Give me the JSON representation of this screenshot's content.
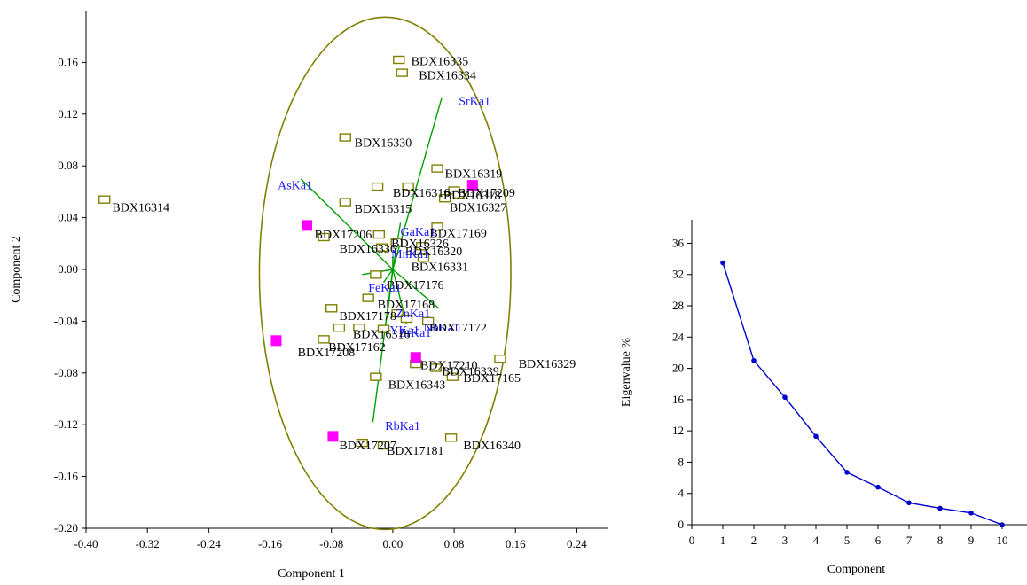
{
  "chart_data": [
    {
      "type": "scatter",
      "title": "",
      "xlabel": "Component 1",
      "ylabel": "Component 2",
      "xlim": [
        -0.4,
        0.28
      ],
      "ylim": [
        -0.2,
        0.2
      ],
      "xticks": [
        "-0.40",
        "-0.32",
        "-0.24",
        "-0.16",
        "-0.08",
        "0.00",
        "0.08",
        "0.16",
        "0.24"
      ],
      "xtick_values": [
        -0.4,
        -0.32,
        -0.24,
        -0.16,
        -0.08,
        0.0,
        0.08,
        0.16,
        0.24
      ],
      "yticks": [
        "0.16",
        "0.12",
        "0.08",
        "0.04",
        "0.00",
        "-0.04",
        "-0.08",
        "-0.12",
        "-0.16",
        "-0.20"
      ],
      "ytick_values": [
        0.16,
        0.12,
        0.08,
        0.04,
        0.0,
        -0.04,
        -0.08,
        -0.12,
        -0.16,
        -0.2
      ],
      "grid": false,
      "colors": {
        "ellipse": "#808000",
        "sample_marker": "#808000",
        "highlight_marker": "#ff00ff",
        "loading_line": "#00a000",
        "loading_label": "#1a1aff"
      },
      "ellipse": {
        "cx": -0.01,
        "cy": -0.003,
        "rx": 0.164,
        "ry": 0.198
      },
      "samples": [
        {
          "label": "BDX16335",
          "x": 0.008,
          "y": 0.162
        },
        {
          "label": "BDX16334",
          "x": 0.012,
          "y": 0.152
        },
        {
          "label": "BDX16330",
          "x": -0.062,
          "y": 0.102
        },
        {
          "label": "BDX16319",
          "x": 0.058,
          "y": 0.078
        },
        {
          "label": "BDX17209",
          "x": 0.08,
          "y": 0.061
        },
        {
          "label": "BDX16318",
          "x": 0.086,
          "y": 0.058
        },
        {
          "label": "BDX16327",
          "x": 0.068,
          "y": 0.055
        },
        {
          "label": "BDX16316",
          "x": -0.02,
          "y": 0.064
        },
        {
          "label": "BDX16328",
          "x": 0.02,
          "y": 0.064
        },
        {
          "label": "BDX16315",
          "x": -0.062,
          "y": 0.052
        },
        {
          "label": "BDX16314",
          "x": -0.376,
          "y": 0.054
        },
        {
          "label": "BDX17169",
          "x": 0.058,
          "y": 0.033
        },
        {
          "label": "BDX17206",
          "x": -0.09,
          "y": 0.025
        },
        {
          "label": "BDX16336",
          "x": -0.018,
          "y": 0.027
        },
        {
          "label": "BDX16326",
          "x": 0.005,
          "y": 0.021
        },
        {
          "label": "BDX16337",
          "x": -0.014,
          "y": 0.017
        },
        {
          "label": "BDX16320",
          "x": 0.038,
          "y": 0.018
        },
        {
          "label": "BDX16331",
          "x": 0.04,
          "y": 0.009
        },
        {
          "label": "BDX17176",
          "x": -0.022,
          "y": -0.004
        },
        {
          "label": "BDX17168",
          "x": -0.032,
          "y": -0.022
        },
        {
          "label": "BDX17177",
          "x": -0.08,
          "y": -0.03
        },
        {
          "label": "BDX17178",
          "x": 0.006,
          "y": -0.034
        },
        {
          "label": "BDX17171",
          "x": 0.018,
          "y": -0.038
        },
        {
          "label": "BDX17172",
          "x": 0.046,
          "y": -0.04
        },
        {
          "label": "BDX17174",
          "x": -0.012,
          "y": -0.046
        },
        {
          "label": "BDX16316b",
          "x": -0.07,
          "y": -0.045
        },
        {
          "label": "BDX17162",
          "x": -0.09,
          "y": -0.054
        },
        {
          "label": "BDX16341",
          "x": -0.044,
          "y": -0.045
        },
        {
          "label": "BDX16329",
          "x": 0.14,
          "y": -0.069
        },
        {
          "label": "BDX17210",
          "x": 0.03,
          "y": -0.073
        },
        {
          "label": "BDX16339",
          "x": 0.056,
          "y": -0.076
        },
        {
          "label": "BDX17165",
          "x": 0.078,
          "y": -0.083
        },
        {
          "label": "BDX16343",
          "x": -0.022,
          "y": -0.083
        },
        {
          "label": "BDX16340",
          "x": 0.076,
          "y": -0.13
        },
        {
          "label": "BDX17181",
          "x": -0.012,
          "y": -0.136
        },
        {
          "label": "BDX17207",
          "x": -0.04,
          "y": -0.134
        }
      ],
      "highlighted": [
        {
          "label": "BDX17209",
          "x": 0.104,
          "y": 0.065
        },
        {
          "label": "BDX17206",
          "x": -0.112,
          "y": 0.034
        },
        {
          "label": "BDX17208",
          "x": -0.152,
          "y": -0.055
        },
        {
          "label": "BDX17210",
          "x": 0.03,
          "y": -0.068
        },
        {
          "label": "BDX17207",
          "x": -0.078,
          "y": -0.129
        }
      ],
      "loadings": [
        {
          "label": "SrKa1",
          "x": 0.064,
          "y": 0.133
        },
        {
          "label": "AsKa1",
          "x": -0.12,
          "y": 0.07
        },
        {
          "label": "GaKa1",
          "x": 0.01,
          "y": 0.036
        },
        {
          "label": "MnKa1",
          "x": 0.0,
          "y": 0.01
        },
        {
          "label": "FeKa1",
          "x": -0.012,
          "y": -0.01
        },
        {
          "label": "ZnKa1",
          "x": -0.006,
          "y": -0.03
        },
        {
          "label": "YKa1",
          "x": -0.01,
          "y": -0.046
        },
        {
          "label": "ZrKa1",
          "x": 0.018,
          "y": -0.042
        },
        {
          "label": "NbKa1",
          "x": 0.06,
          "y": -0.03
        },
        {
          "label": "CuKa1",
          "x": -0.04,
          "y": -0.004
        },
        {
          "label": "RbKa1",
          "x": -0.026,
          "y": -0.118
        }
      ],
      "plotted_labels": [
        {
          "text": "BDX16335",
          "x": 0.024,
          "y": 0.158
        },
        {
          "text": "BDX16334",
          "x": 0.034,
          "y": 0.147
        },
        {
          "text": "SrKa1",
          "x": 0.086,
          "y": 0.127
        },
        {
          "text": "BDX16330",
          "x": -0.05,
          "y": 0.095
        },
        {
          "text": "BDX16319",
          "x": 0.068,
          "y": 0.071
        },
        {
          "text": "AsKa1",
          "x": -0.15,
          "y": 0.062
        },
        {
          "text": "BDX16316",
          "x": 0.0,
          "y": 0.056
        },
        {
          "text": "BDX17209",
          "x": 0.085,
          "y": 0.056
        },
        {
          "text": "BDX16318",
          "x": 0.066,
          "y": 0.054
        },
        {
          "text": "BDX16314",
          "x": -0.366,
          "y": 0.045
        },
        {
          "text": "BDX16315",
          "x": -0.05,
          "y": 0.044
        },
        {
          "text": "BDX16327",
          "x": 0.074,
          "y": 0.045
        },
        {
          "text": "GaKa1",
          "x": 0.01,
          "y": 0.026
        },
        {
          "text": "BDX17169",
          "x": 0.048,
          "y": 0.025
        },
        {
          "text": "BDX17206",
          "x": -0.102,
          "y": 0.024
        },
        {
          "text": "BDX16326",
          "x": -0.002,
          "y": 0.017
        },
        {
          "text": "BDX16336",
          "x": -0.07,
          "y": 0.013
        },
        {
          "text": "BDX16320",
          "x": 0.016,
          "y": 0.011
        },
        {
          "text": "MnKa1",
          "x": -0.002,
          "y": 0.009
        },
        {
          "text": "BDX16331",
          "x": 0.024,
          "y": -0.001
        },
        {
          "text": "BDX17176",
          "x": -0.008,
          "y": -0.015
        },
        {
          "text": "FeKa1",
          "x": -0.032,
          "y": -0.017
        },
        {
          "text": "BDX17168",
          "x": -0.02,
          "y": -0.03
        },
        {
          "text": "ZnKa1",
          "x": 0.004,
          "y": -0.037
        },
        {
          "text": "BDX17178",
          "x": -0.07,
          "y": -0.039
        },
        {
          "text": "NbKa1",
          "x": 0.04,
          "y": -0.048
        },
        {
          "text": "BDX17172",
          "x": 0.048,
          "y": -0.048
        },
        {
          "text": "YKa1",
          "x": -0.004,
          "y": -0.05
        },
        {
          "text": "ZrKa1",
          "x": 0.008,
          "y": -0.052
        },
        {
          "text": "BDX16316",
          "x": -0.052,
          "y": -0.053
        },
        {
          "text": "BDX17162",
          "x": -0.084,
          "y": -0.063
        },
        {
          "text": "BDX17208",
          "x": -0.124,
          "y": -0.067
        },
        {
          "text": "BDX16329",
          "x": 0.164,
          "y": -0.076
        },
        {
          "text": "BDX17210",
          "x": 0.036,
          "y": -0.077
        },
        {
          "text": "BDX16339",
          "x": 0.064,
          "y": -0.082
        },
        {
          "text": "BDX17165",
          "x": 0.092,
          "y": -0.087
        },
        {
          "text": "BDX16343",
          "x": -0.006,
          "y": -0.092
        },
        {
          "text": "RbKa1",
          "x": -0.01,
          "y": -0.124
        },
        {
          "text": "BDX16340",
          "x": 0.092,
          "y": -0.139
        },
        {
          "text": "BDX17207",
          "x": -0.07,
          "y": -0.139
        },
        {
          "text": "BDX17181",
          "x": -0.008,
          "y": -0.143
        }
      ]
    },
    {
      "type": "line",
      "title": "",
      "xlabel": "Component",
      "ylabel": "Eigenvalue %",
      "xlim": [
        0,
        10.8
      ],
      "ylim": [
        0,
        39
      ],
      "xticks": [
        "0",
        "1",
        "2",
        "3",
        "4",
        "5",
        "6",
        "7",
        "8",
        "9",
        "10"
      ],
      "xtick_values": [
        0,
        1,
        2,
        3,
        4,
        5,
        6,
        7,
        8,
        9,
        10
      ],
      "yticks": [
        "36",
        "32",
        "28",
        "24",
        "20",
        "16",
        "12",
        "8",
        "4",
        "0"
      ],
      "ytick_values": [
        36,
        32,
        28,
        24,
        20,
        16,
        12,
        8,
        4,
        0
      ],
      "grid": false,
      "colors": {
        "line": "#0000cc"
      },
      "x": [
        1,
        2,
        3,
        4,
        5,
        6,
        7,
        8,
        9,
        10
      ],
      "values": [
        33.5,
        21.0,
        16.3,
        11.3,
        6.7,
        4.8,
        2.8,
        2.1,
        1.5,
        0.0
      ]
    }
  ]
}
